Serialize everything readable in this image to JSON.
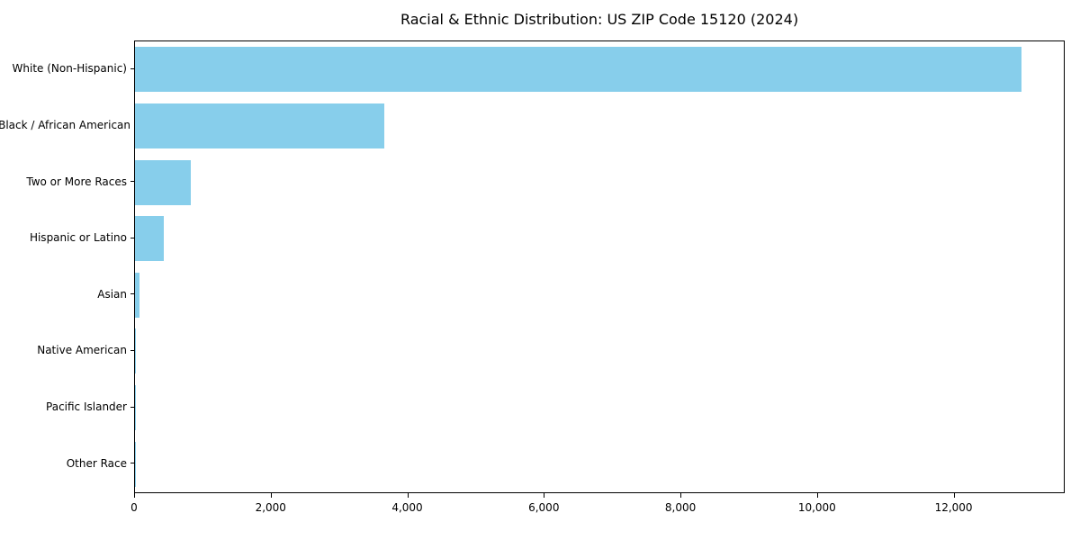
{
  "title": "Racial & Ethnic Distribution: US ZIP Code 15120 (2024)",
  "chart_data": {
    "type": "bar",
    "orientation": "horizontal",
    "title": "Racial & Ethnic Distribution: US ZIP Code 15120 (2024)",
    "xlabel": "",
    "ylabel": "",
    "categories": [
      "White (Non-Hispanic)",
      "Black / African American",
      "Two or More Races",
      "Hispanic or Latino",
      "Asian",
      "Native American",
      "Pacific Islander",
      "Other Race"
    ],
    "values": [
      12980,
      3650,
      820,
      420,
      70,
      15,
      5,
      5
    ],
    "xlim": [
      0,
      13600
    ],
    "xticks": [
      0,
      2000,
      4000,
      6000,
      8000,
      10000,
      12000
    ],
    "xtick_labels": [
      "0",
      "2,000",
      "4,000",
      "6,000",
      "8,000",
      "10,000",
      "12,000"
    ],
    "bar_color": "#87CEEB",
    "grid": false,
    "legend": null
  }
}
